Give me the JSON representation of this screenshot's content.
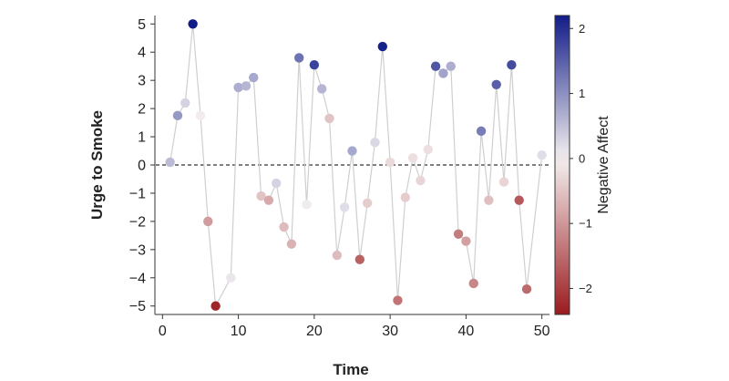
{
  "chart_data": {
    "type": "scatter",
    "title": "",
    "xlabel": "Time",
    "ylabel": "Urge to Smoke",
    "colorbar_label": "Negative Affect",
    "xlim": [
      -1,
      51
    ],
    "ylim": [
      -5.3,
      5.3
    ],
    "xticks": [
      0,
      10,
      20,
      30,
      40,
      50
    ],
    "yticks": [
      -5,
      -4,
      -3,
      -2,
      -1,
      0,
      1,
      2,
      3,
      4,
      5
    ],
    "colorbar_range": [
      -2.4,
      2.2
    ],
    "colorbar_ticks": [
      -2,
      -1,
      0,
      1,
      2
    ],
    "reference_line": 0,
    "points": [
      {
        "x": 1,
        "y": 0.1,
        "c": 0.55
      },
      {
        "x": 2,
        "y": 1.75,
        "c": 0.9
      },
      {
        "x": 3,
        "y": 2.2,
        "c": 0.3
      },
      {
        "x": 4,
        "y": 5.0,
        "c": 2.2
      },
      {
        "x": 5,
        "y": 1.75,
        "c": -0.05
      },
      {
        "x": 6,
        "y": -2.0,
        "c": -0.95
      },
      {
        "x": 7,
        "y": -5.0,
        "c": -2.3
      },
      {
        "x": 9,
        "y": -4.0,
        "c": 0.1
      },
      {
        "x": 10,
        "y": 2.75,
        "c": 0.7
      },
      {
        "x": 11,
        "y": 2.8,
        "c": 0.6
      },
      {
        "x": 12,
        "y": 3.1,
        "c": 0.75
      },
      {
        "x": 13,
        "y": -1.1,
        "c": -0.5
      },
      {
        "x": 14,
        "y": -1.25,
        "c": -0.8
      },
      {
        "x": 15,
        "y": -0.65,
        "c": 0.3
      },
      {
        "x": 16,
        "y": -2.2,
        "c": -0.6
      },
      {
        "x": 17,
        "y": -2.8,
        "c": -0.7
      },
      {
        "x": 18,
        "y": 3.8,
        "c": 1.3
      },
      {
        "x": 19,
        "y": -1.4,
        "c": 0.05
      },
      {
        "x": 20,
        "y": 3.55,
        "c": 1.8
      },
      {
        "x": 21,
        "y": 2.7,
        "c": 0.6
      },
      {
        "x": 22,
        "y": 1.65,
        "c": -0.5
      },
      {
        "x": 23,
        "y": -3.2,
        "c": -0.6
      },
      {
        "x": 24,
        "y": -1.5,
        "c": 0.2
      },
      {
        "x": 25,
        "y": 0.5,
        "c": 0.75
      },
      {
        "x": 26,
        "y": -3.35,
        "c": -1.6
      },
      {
        "x": 27,
        "y": -1.35,
        "c": -0.4
      },
      {
        "x": 28,
        "y": 0.8,
        "c": 0.25
      },
      {
        "x": 29,
        "y": 4.2,
        "c": 2.15
      },
      {
        "x": 30,
        "y": 0.1,
        "c": -0.25
      },
      {
        "x": 31,
        "y": -4.8,
        "c": -1.4
      },
      {
        "x": 32,
        "y": -1.15,
        "c": -0.4
      },
      {
        "x": 33,
        "y": 0.25,
        "c": -0.2
      },
      {
        "x": 34,
        "y": -0.55,
        "c": -0.3
      },
      {
        "x": 35,
        "y": 0.55,
        "c": -0.2
      },
      {
        "x": 36,
        "y": 3.5,
        "c": 1.6
      },
      {
        "x": 37,
        "y": 3.25,
        "c": 0.8
      },
      {
        "x": 38,
        "y": 3.5,
        "c": 0.7
      },
      {
        "x": 39,
        "y": -2.45,
        "c": -1.3
      },
      {
        "x": 40,
        "y": -2.7,
        "c": -0.9
      },
      {
        "x": 41,
        "y": -4.2,
        "c": -1.2
      },
      {
        "x": 42,
        "y": 1.2,
        "c": 1.2
      },
      {
        "x": 43,
        "y": -1.25,
        "c": -0.55
      },
      {
        "x": 44,
        "y": 2.85,
        "c": 1.5
      },
      {
        "x": 45,
        "y": -0.6,
        "c": -0.3
      },
      {
        "x": 46,
        "y": 3.55,
        "c": 1.7
      },
      {
        "x": 47,
        "y": -1.25,
        "c": -1.7
      },
      {
        "x": 48,
        "y": -4.4,
        "c": -1.5
      },
      {
        "x": 50,
        "y": 0.35,
        "c": 0.2
      }
    ]
  },
  "colors": {
    "line": "#cfcfcf",
    "reference_line": "#333333",
    "colormap_low": "#9b1b1e",
    "colormap_mid": "#f4f0f0",
    "colormap_high": "#111c88"
  }
}
